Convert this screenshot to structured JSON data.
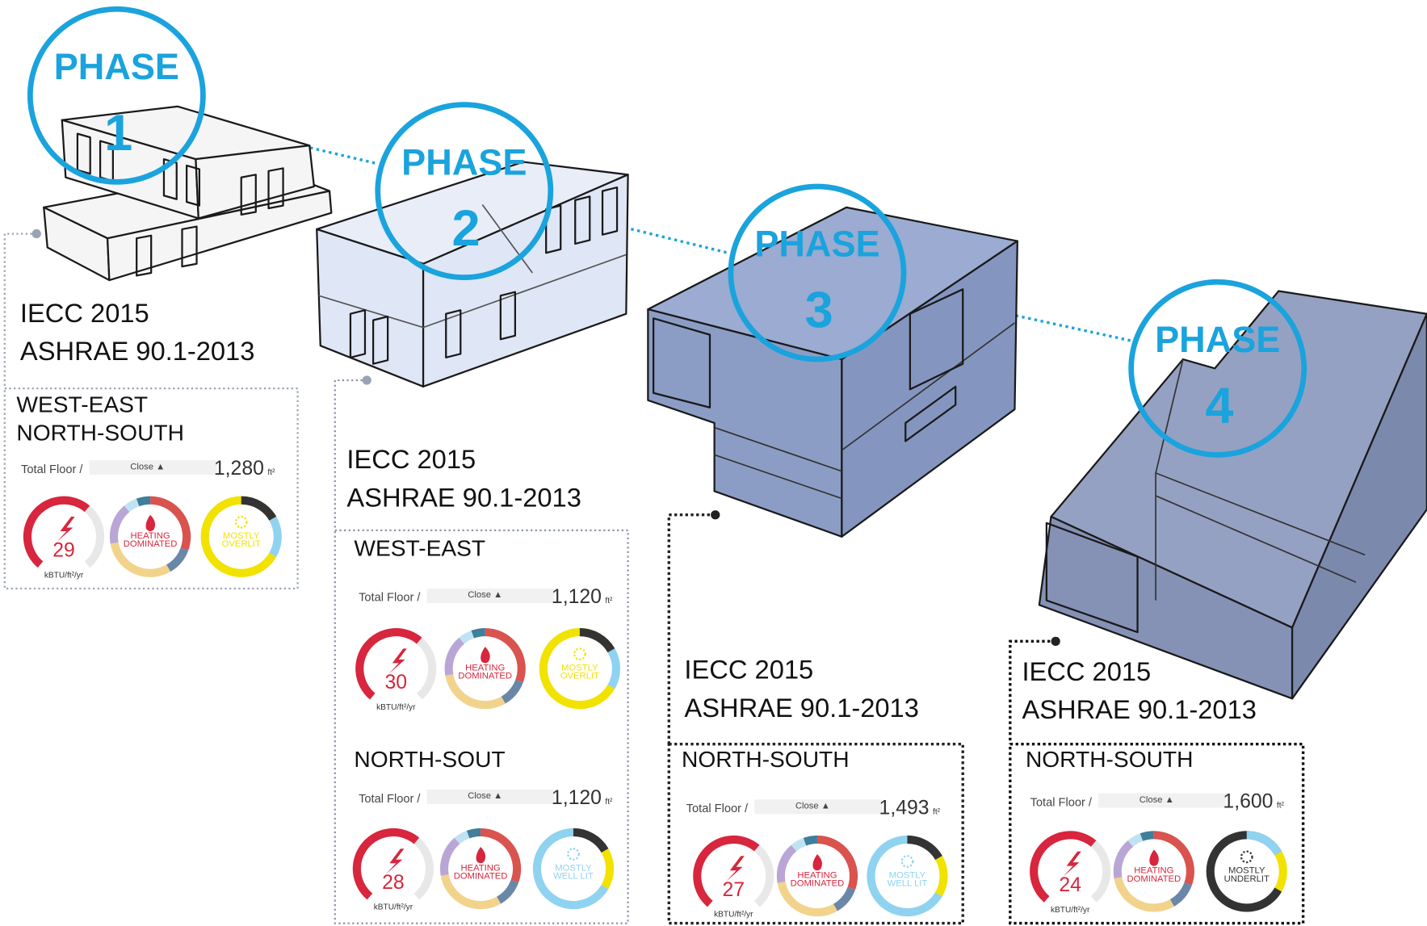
{
  "phases": [
    {
      "label": "PHASE",
      "number": 1,
      "codes": [
        "IECC 2015",
        "ASHRAE 90.1-2013"
      ],
      "panels": [
        {
          "title": [
            "WEST-EAST",
            "NORTH-SOUTH"
          ],
          "floor_label": "Total Floor /",
          "sort": "Close ▲",
          "area": "1,280",
          "area_unit": "ft²",
          "eui": 29,
          "eui_unit": "kBTU/ft²/yr",
          "heating": [
            "HEATING",
            "DOMINATED"
          ],
          "daylight": [
            "MOSTLY",
            "OVERLIT"
          ],
          "daylight_colors": [
            "#f2e200",
            "#8fd3f0",
            "#333333"
          ]
        }
      ]
    },
    {
      "label": "PHASE",
      "number": 2,
      "codes": [
        "IECC 2015",
        "ASHRAE 90.1-2013"
      ],
      "panels": [
        {
          "title": [
            "WEST-EAST"
          ],
          "floor_label": "Total Floor /",
          "sort": "Close ▲",
          "area": "1,120",
          "area_unit": "ft²",
          "eui": 30,
          "eui_unit": "kBTU/ft²/yr",
          "heating": [
            "HEATING",
            "DOMINATED"
          ],
          "daylight": [
            "MOSTLY",
            "OVERLIT"
          ],
          "daylight_colors": [
            "#f2e200",
            "#8fd3f0",
            "#333333"
          ]
        },
        {
          "title": [
            "NORTH-SOUT"
          ],
          "floor_label": "Total Floor /",
          "sort": "Close ▲",
          "area": "1,120",
          "area_unit": "ft²",
          "eui": 28,
          "eui_unit": "kBTU/ft²/yr",
          "heating": [
            "HEATING",
            "DOMINATED"
          ],
          "daylight": [
            "MOSTLY",
            "WELL LIT"
          ],
          "daylight_colors": [
            "#8fd3f0",
            "#f2e200",
            "#333333"
          ]
        }
      ]
    },
    {
      "label": "PHASE",
      "number": 3,
      "codes": [
        "IECC 2015",
        "ASHRAE 90.1-2013"
      ],
      "panels": [
        {
          "title": [
            "NORTH-SOUTH"
          ],
          "floor_label": "Total Floor /",
          "sort": "Close ▲",
          "area": "1,493",
          "area_unit": "ft²",
          "eui": 27,
          "eui_unit": "kBTU/ft²/yr",
          "heating": [
            "HEATING",
            "DOMINATED"
          ],
          "daylight": [
            "MOSTLY",
            "WELL LIT"
          ],
          "daylight_colors": [
            "#8fd3f0",
            "#f2e200",
            "#333333"
          ]
        }
      ]
    },
    {
      "label": "PHASE",
      "number": 4,
      "codes": [
        "IECC 2015",
        "ASHRAE 90.1-2013"
      ],
      "panels": [
        {
          "title": [
            "NORTH-SOUTH"
          ],
          "floor_label": "Total Floor /",
          "sort": "Close ▲",
          "area": "1,600",
          "area_unit": "ft²",
          "eui": 24,
          "eui_unit": "kBTU/ft²/yr",
          "heating": [
            "HEATING",
            "DOMINATED"
          ],
          "daylight": [
            "MOSTLY",
            "UNDERLIT"
          ],
          "daylight_colors": [
            "#333333",
            "#f2e200",
            "#8fd3f0"
          ]
        }
      ]
    }
  ]
}
